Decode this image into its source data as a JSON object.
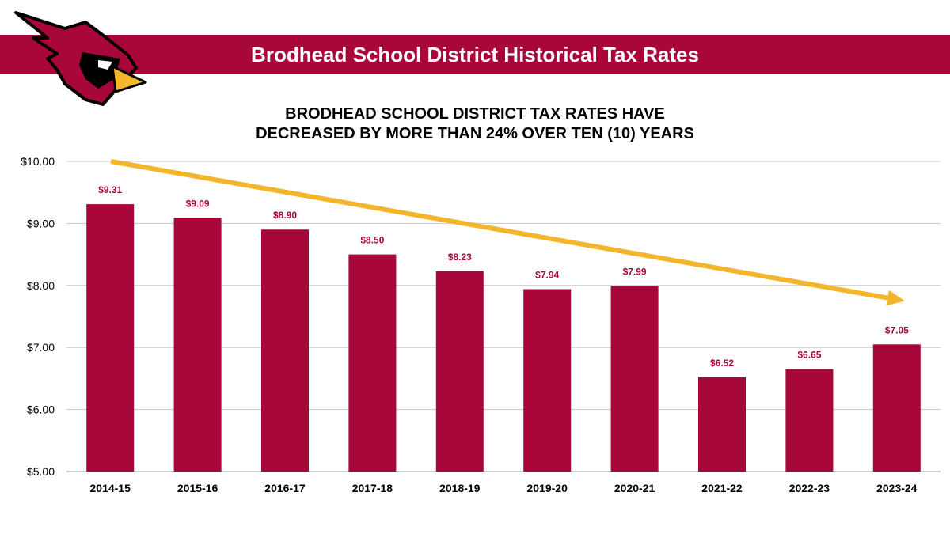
{
  "header": {
    "title": "Brodhead School District Historical Tax Rates"
  },
  "colors": {
    "brand": "#a8073a",
    "label": "#a8073a",
    "arrow": "#f2b52c",
    "grid": "#c8c8c8",
    "logo_beak": "#f5b82a",
    "logo_black": "#000000"
  },
  "chart_data": {
    "type": "bar",
    "title_lines": [
      "BRODHEAD SCHOOL DISTRICT TAX RATES HAVE",
      "DECREASED BY MORE THAN 24% OVER TEN (10) YEARS"
    ],
    "categories": [
      "2014-15",
      "2015-16",
      "2016-17",
      "2017-18",
      "2018-19",
      "2019-20",
      "2020-21",
      "2021-22",
      "2022-23",
      "2023-24"
    ],
    "values": [
      9.31,
      9.09,
      8.9,
      8.5,
      8.23,
      7.94,
      7.99,
      6.52,
      6.65,
      7.05
    ],
    "value_labels": [
      "$9.31",
      "$9.09",
      "$8.90",
      "$8.50",
      "$8.23",
      "$7.94",
      "$7.99",
      "$6.52",
      "$6.65",
      "$7.05"
    ],
    "ylim": [
      5,
      10
    ],
    "yticks": [
      5,
      6,
      7,
      8,
      9,
      10
    ],
    "ytick_labels": [
      "$5.00",
      "$6.00",
      "$7.00",
      "$8.00",
      "$9.00",
      "$10.00"
    ],
    "xlabel": "",
    "ylabel": "",
    "grid": true,
    "trend_arrow": {
      "from": {
        "category": "2014-15",
        "value": 10.0
      },
      "to": {
        "category": "2023-24",
        "value": 7.75
      }
    }
  }
}
